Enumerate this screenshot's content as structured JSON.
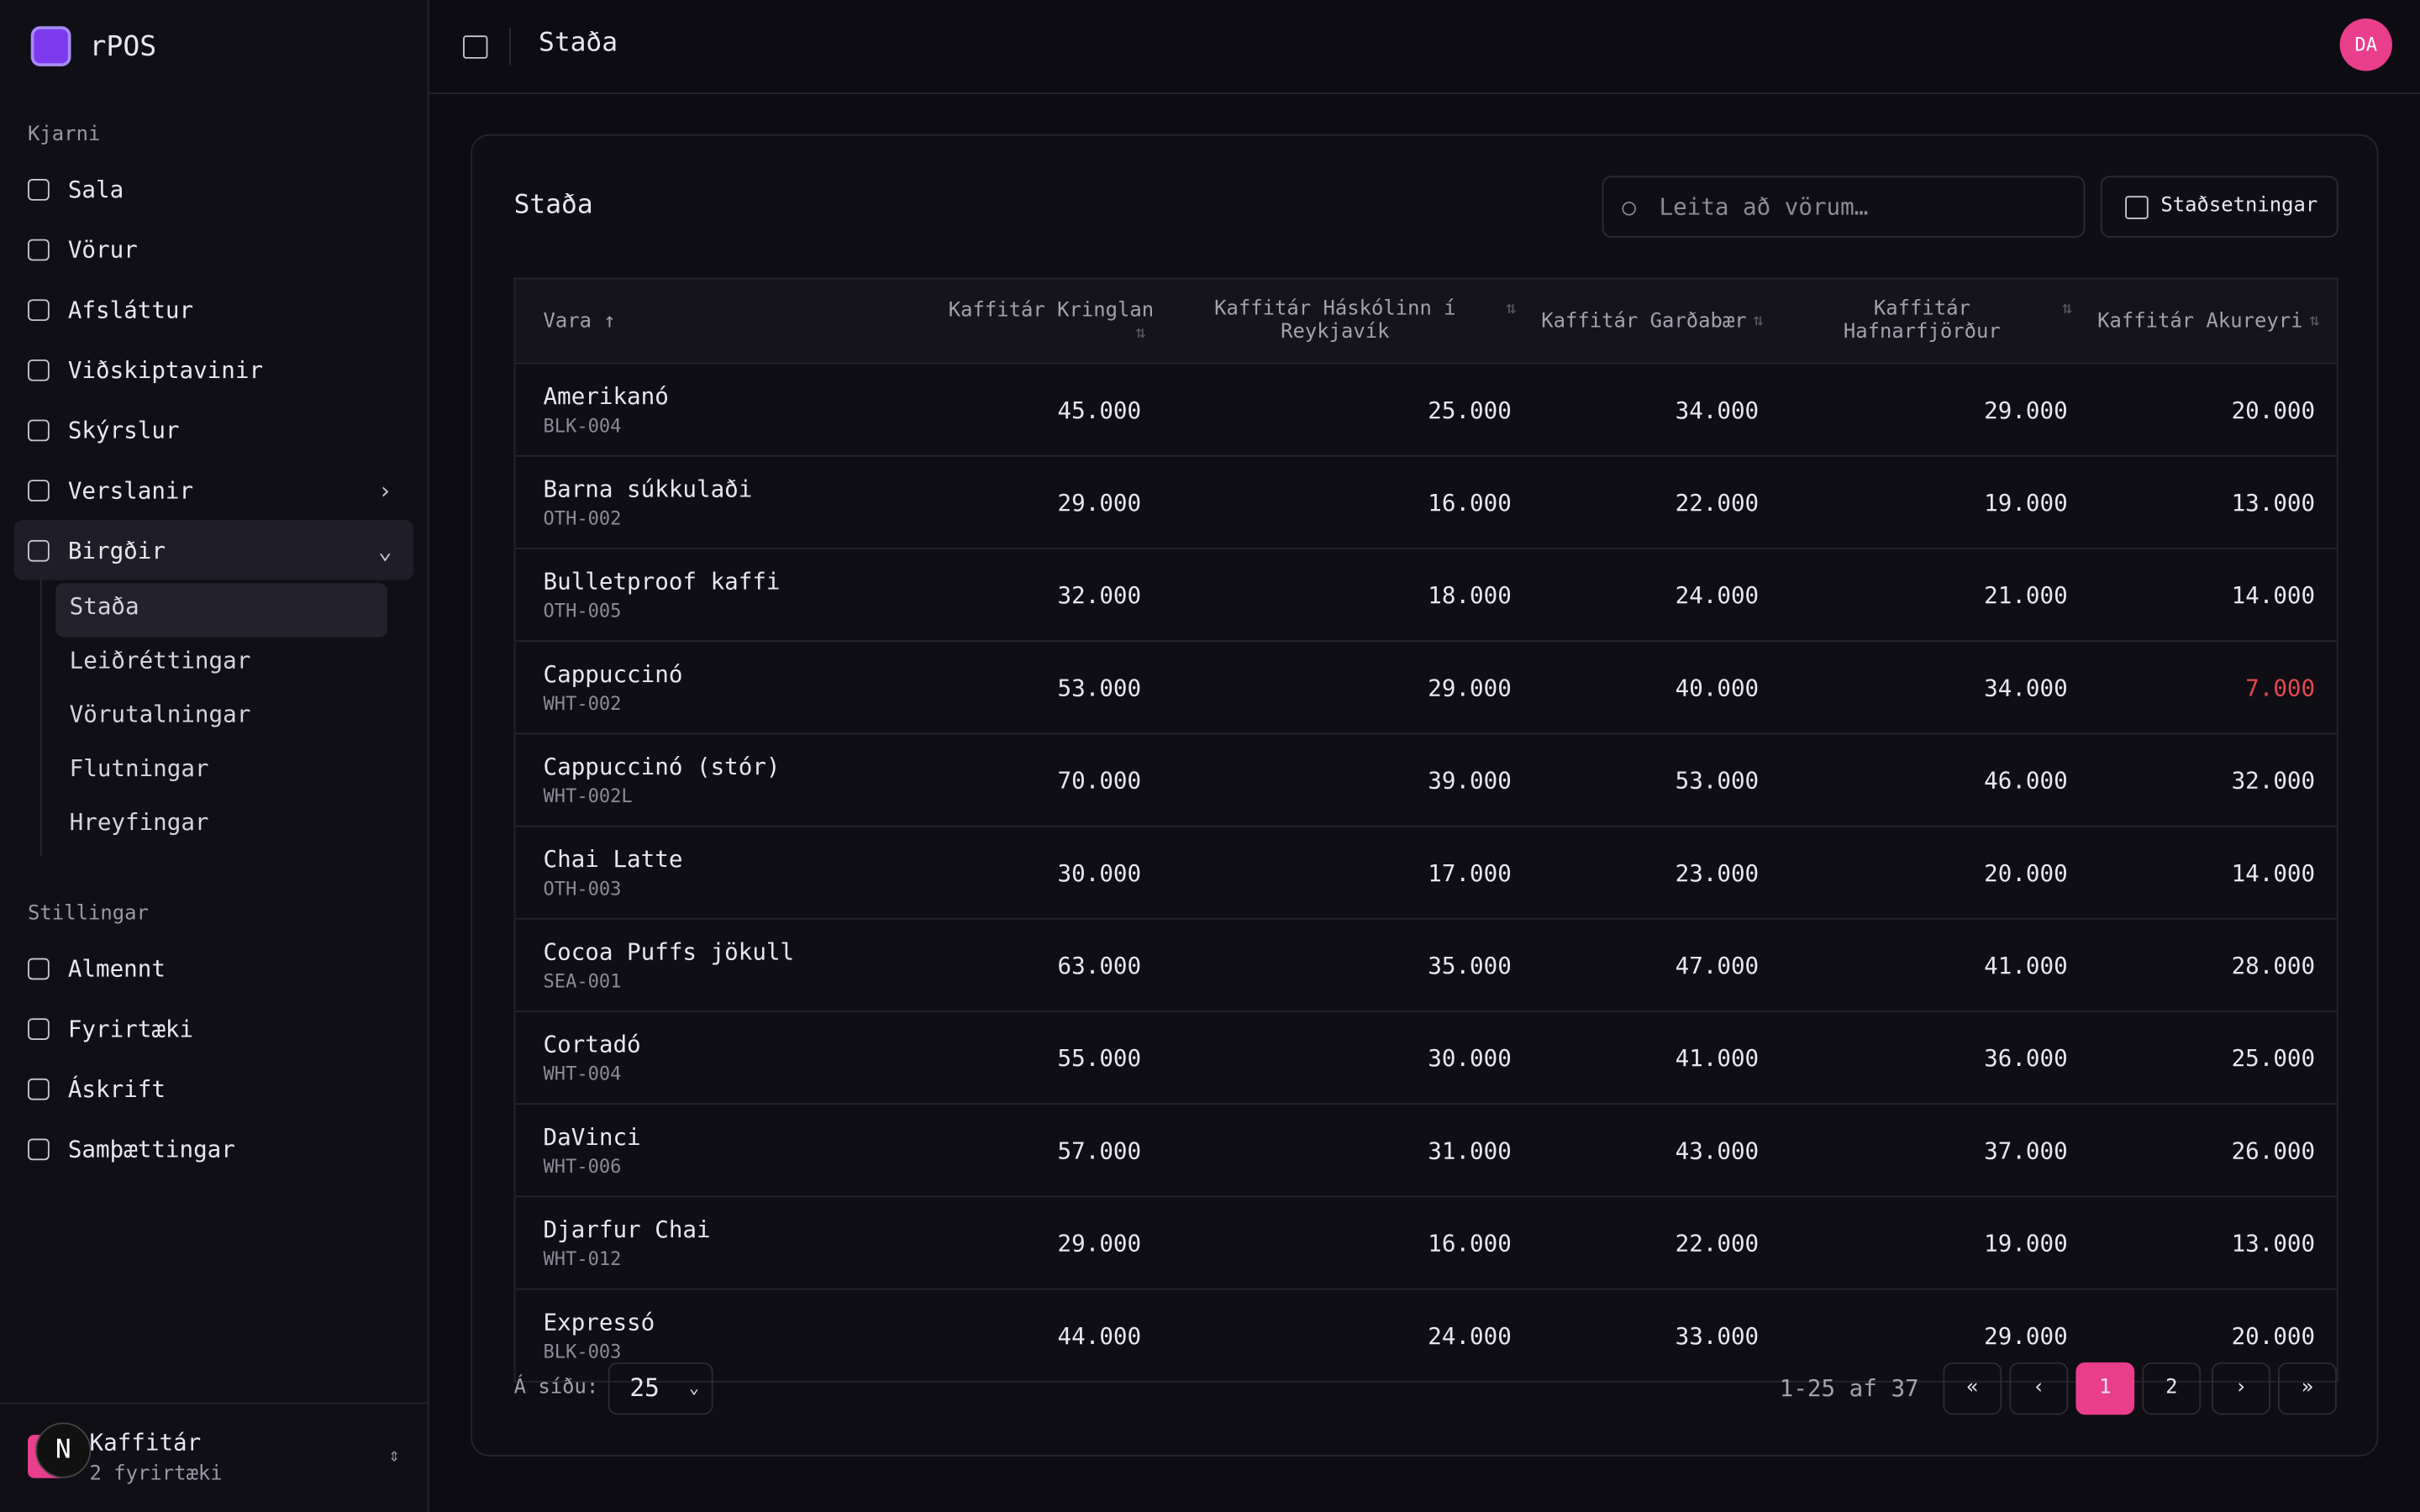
{
  "brand": "rPOS",
  "nav": [
    {
      "title": "Kjarni",
      "items": [
        {
          "label": "Sala"
        },
        {
          "label": "Vörur"
        },
        {
          "label": "Afsláttur"
        },
        {
          "label": "Viðskiptavinir"
        },
        {
          "label": "Skýrslur"
        },
        {
          "label": "Verslanir",
          "chevron": "›"
        },
        {
          "label": "Birgðir",
          "chevron": "⌄",
          "open": true,
          "children": [
            "Staða",
            "Leiðréttingar",
            "Vörutalningar",
            "Flutningar",
            "Hreyfingar"
          ]
        }
      ]
    },
    {
      "title": "Stillingar",
      "items": [
        {
          "label": "Almennt"
        },
        {
          "label": "Fyrirtæki"
        },
        {
          "label": "Áskrift"
        },
        {
          "label": "Samþættingar"
        }
      ]
    }
  ],
  "org": {
    "badge": "N",
    "name": "Kaffitár",
    "sub": "2 fyrirtæki"
  },
  "header": {
    "title": "Staða",
    "avatar": "DA"
  },
  "card": {
    "title": "Staða",
    "search": "Leita að vörum…",
    "button": "Staðsetningar"
  },
  "table": {
    "columns": [
      "Vara ↑",
      "Kaffitár Kringlan",
      "Kaffitár Háskólinn í Reykjavík",
      "Kaffitár Garðabær",
      "Kaffitár Hafnarfjörður",
      "Kaffitár Akureyri"
    ],
    "rows": [
      {
        "name": "Amerikanó",
        "sku": "BLK-004",
        "values": [
          "45.000",
          "25.000",
          "34.000",
          "29.000",
          "20.000"
        ]
      },
      {
        "name": "Barna súkkulaði",
        "sku": "OTH-002",
        "values": [
          "29.000",
          "16.000",
          "22.000",
          "19.000",
          "13.000"
        ]
      },
      {
        "name": "Bulletproof kaffi",
        "sku": "OTH-005",
        "values": [
          "32.000",
          "18.000",
          "24.000",
          "21.000",
          "14.000"
        ]
      },
      {
        "name": "Cappuccinó",
        "sku": "WHT-002",
        "values": [
          "53.000",
          "29.000",
          "40.000",
          "34.000",
          {
            "text": "7.000",
            "color": "#e5484d"
          }
        ]
      },
      {
        "name": "Cappuccinó (stór)",
        "sku": "WHT-002L",
        "values": [
          "70.000",
          "39.000",
          "53.000",
          "46.000",
          "32.000"
        ]
      },
      {
        "name": "Chai Latte",
        "sku": "OTH-003",
        "values": [
          "30.000",
          "17.000",
          "23.000",
          "20.000",
          "14.000"
        ]
      },
      {
        "name": "Cocoa Puffs jökull",
        "sku": "SEA-001",
        "values": [
          "63.000",
          "35.000",
          "47.000",
          "41.000",
          "28.000"
        ]
      },
      {
        "name": "Cortadó",
        "sku": "WHT-004",
        "values": [
          "55.000",
          "30.000",
          "41.000",
          "36.000",
          "25.000"
        ]
      },
      {
        "name": "DaVinci",
        "sku": "WHT-006",
        "values": [
          "57.000",
          "31.000",
          "43.000",
          "37.000",
          "26.000"
        ]
      },
      {
        "name": "Djarfur Chai",
        "sku": "WHT-012",
        "values": [
          "29.000",
          "16.000",
          "22.000",
          "19.000",
          "13.000"
        ]
      },
      {
        "name": "Expressó",
        "sku": "BLK-003",
        "values": [
          "44.000",
          "24.000",
          "33.000",
          "29.000",
          "20.000"
        ]
      }
    ]
  },
  "footer": {
    "per_page_label": "Á síðu:",
    "per_page": "25",
    "range": "1-25 af 37",
    "pages": [
      "1",
      "2"
    ]
  }
}
